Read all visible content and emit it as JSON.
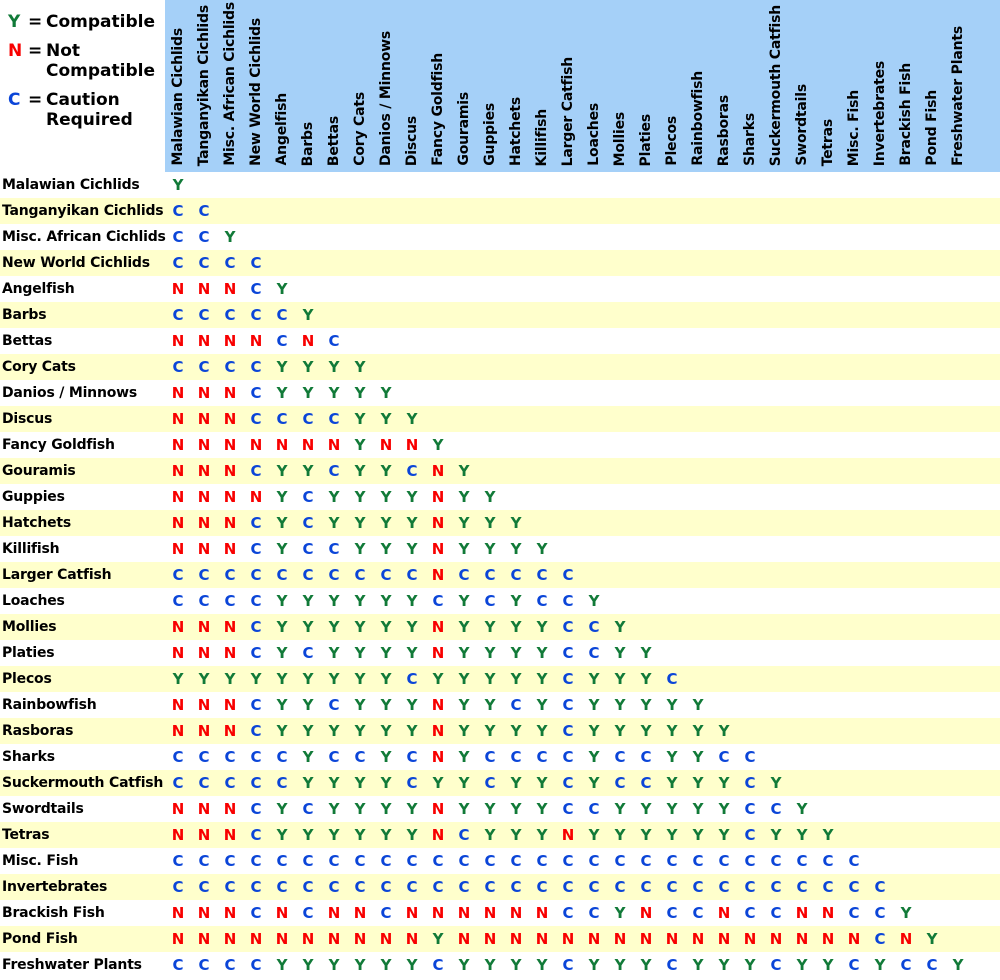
{
  "legend": {
    "equals_sign": "=",
    "items": [
      {
        "symbol": "Y",
        "label": "Compatible"
      },
      {
        "symbol": "N",
        "label": "Not\nCompatible"
      },
      {
        "symbol": "C",
        "label": "Caution\nRequired"
      }
    ]
  },
  "colors": {
    "Y": "#117A38",
    "N": "#F80000",
    "C": "#0B45D8",
    "header_bg": "#A5D0F8",
    "stripe_yellow": "#FFFFCC",
    "label_text": "#000000"
  },
  "chart_data": {
    "type": "table",
    "title": "Fish compatibility matrix (lower triangular)",
    "legend": {
      "Y": "Compatible",
      "N": "Not Compatible",
      "C": "Caution Required"
    },
    "categories": [
      "Malawian Cichlids",
      "Tanganyikan Cichlids",
      "Misc. African Cichlids",
      "New World Cichlids",
      "Angelfish",
      "Barbs",
      "Bettas",
      "Cory Cats",
      "Danios / Minnows",
      "Discus",
      "Fancy Goldfish",
      "Gouramis",
      "Guppies",
      "Hatchets",
      "Killifish",
      "Larger Catfish",
      "Loaches",
      "Mollies",
      "Platies",
      "Plecos",
      "Rainbowfish",
      "Rasboras",
      "Sharks",
      "Suckermouth Catfish",
      "Swordtails",
      "Tetras",
      "Misc. Fish",
      "Invertebrates",
      "Brackish Fish",
      "Pond Fish",
      "Freshwater Plants"
    ],
    "rows": [
      {
        "name": "Malawian Cichlids",
        "values": "Y"
      },
      {
        "name": "Tanganyikan Cichlids",
        "values": "C C"
      },
      {
        "name": "Misc. African Cichlids",
        "values": "C C Y"
      },
      {
        "name": "New World Cichlids",
        "values": "C C C C"
      },
      {
        "name": "Angelfish",
        "values": "N N N C Y"
      },
      {
        "name": "Barbs",
        "values": "C C C C C Y"
      },
      {
        "name": "Bettas",
        "values": "N N N N C N C"
      },
      {
        "name": "Cory Cats",
        "values": "C C C C Y Y Y Y"
      },
      {
        "name": "Danios / Minnows",
        "values": "N N N C Y Y Y Y Y"
      },
      {
        "name": "Discus",
        "values": "N N N C C C C Y Y Y"
      },
      {
        "name": "Fancy Goldfish",
        "values": "N N N N N N N Y N N Y"
      },
      {
        "name": "Gouramis",
        "values": "N N N C Y Y C Y Y C N Y"
      },
      {
        "name": "Guppies",
        "values": "N N N N Y C Y Y Y Y N Y Y"
      },
      {
        "name": "Hatchets",
        "values": "N N N C Y C Y Y Y Y N Y Y Y"
      },
      {
        "name": "Killifish",
        "values": "N N N C Y C C Y Y Y N Y Y Y Y"
      },
      {
        "name": "Larger Catfish",
        "values": "C C C C C C C C C C N C C C C C"
      },
      {
        "name": "Loaches",
        "values": "C C C C Y Y Y Y Y Y C Y C Y C C Y"
      },
      {
        "name": "Mollies",
        "values": "N N N C Y Y Y Y Y Y N Y Y Y Y C C Y"
      },
      {
        "name": "Platies",
        "values": "N N N C Y C Y Y Y Y N Y Y Y Y C C Y Y"
      },
      {
        "name": "Plecos",
        "values": "Y Y Y Y Y Y Y Y Y C Y Y Y Y Y C Y Y Y C"
      },
      {
        "name": "Rainbowfish",
        "values": "N N N C Y Y C Y Y Y N Y Y C Y C Y Y Y Y Y"
      },
      {
        "name": "Rasboras",
        "values": "N N N C Y Y Y Y Y Y N Y Y Y Y C Y Y Y Y Y Y"
      },
      {
        "name": "Sharks",
        "values": "C C C C C Y C C Y C N Y C C C C Y C C Y Y C C"
      },
      {
        "name": "Suckermouth Catfish",
        "values": "C C C C C Y Y Y Y C Y Y C Y Y C Y C C Y Y Y C Y"
      },
      {
        "name": "Swordtails",
        "values": "N N N C Y C Y Y Y Y N Y Y Y Y C C Y Y Y Y Y C C Y"
      },
      {
        "name": "Tetras",
        "values": "N N N C Y Y Y Y Y Y N C Y Y Y N Y Y Y Y Y Y C Y Y Y"
      },
      {
        "name": "Misc. Fish",
        "values": "C C C C C C C C C C C C C C C C C C C C C C C C C C C"
      },
      {
        "name": "Invertebrates",
        "values": "C C C C C C C C C C C C C C C C C C C C C C C C C C C C"
      },
      {
        "name": "Brackish Fish",
        "values": "N N N C N C N N C N N N N N N C C Y N C C N C C N N C C Y"
      },
      {
        "name": "Pond Fish",
        "values": "N N N N N N N N N N Y N N N N N N N N N N N N N N N N C N Y"
      },
      {
        "name": "Freshwater Plants",
        "values": "C C C C Y Y Y Y Y Y C Y Y Y Y C Y Y Y C Y Y Y C Y Y C Y C C Y"
      }
    ]
  }
}
